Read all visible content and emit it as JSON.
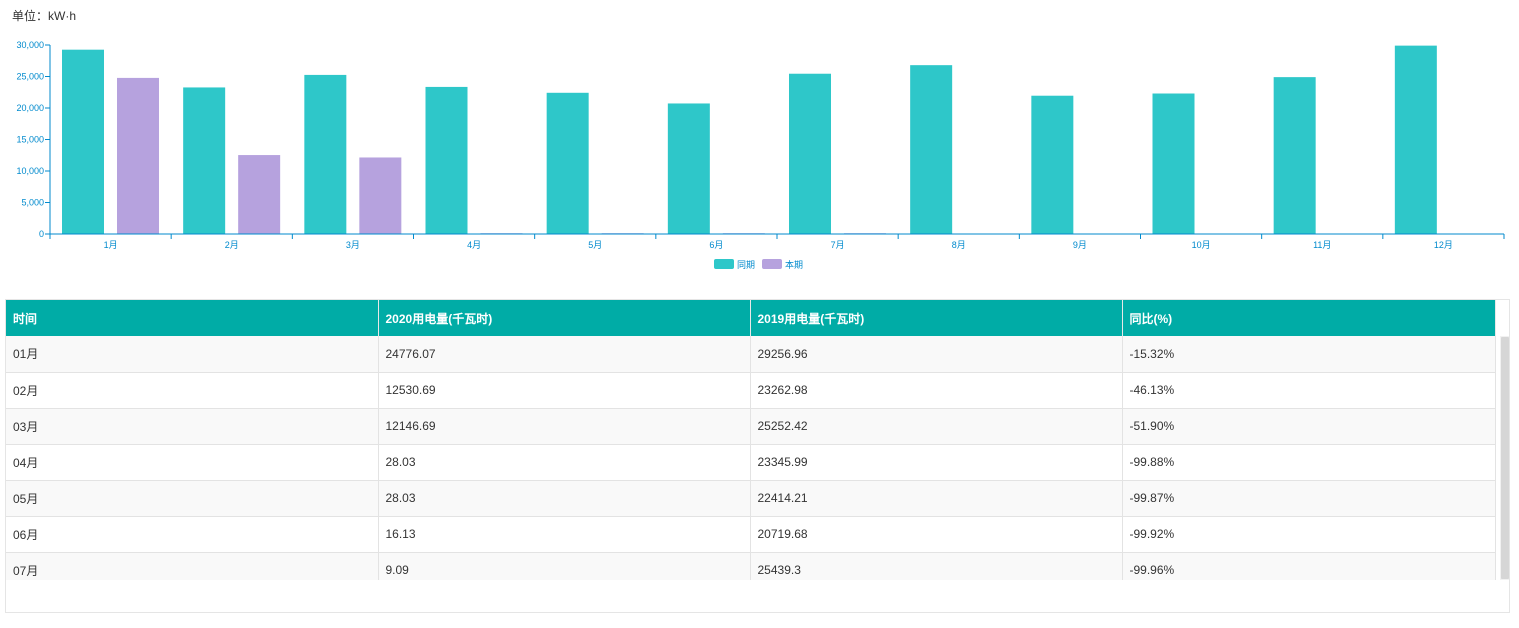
{
  "unit": "单位：kW·h",
  "chart_data": {
    "type": "bar",
    "categories": [
      "1月",
      "2月",
      "3月",
      "4月",
      "5月",
      "6月",
      "7月",
      "8月",
      "9月",
      "10月",
      "11月",
      "12月"
    ],
    "series": [
      {
        "name": "同期",
        "color": "#2ec7c9",
        "values": [
          29256.96,
          23262.98,
          25252.42,
          23345.99,
          22414.21,
          20719.68,
          25439.3,
          26800,
          21950,
          22300,
          24900,
          29900
        ]
      },
      {
        "name": "本期",
        "color": "#b6a2de",
        "values": [
          24776.07,
          12530.69,
          12146.69,
          28.03,
          28.03,
          16.13,
          9.09,
          0,
          0,
          0,
          0,
          0
        ]
      }
    ],
    "ylim": [
      0,
      30000
    ],
    "yticks": [
      0,
      5000,
      10000,
      15000,
      20000,
      25000,
      30000
    ],
    "ytick_labels": [
      "0",
      "5,000",
      "10,000",
      "15,000",
      "20,000",
      "25,000",
      "30,000"
    ],
    "legend": "bottom-center",
    "axis_color": "#008acd"
  },
  "table": {
    "headers": [
      "时间",
      "2020用电量(千瓦时)",
      "2019用电量(千瓦时)",
      "同比(%)"
    ],
    "rows": [
      [
        "01月",
        "24776.07",
        "29256.96",
        "-15.32%"
      ],
      [
        "02月",
        "12530.69",
        "23262.98",
        "-46.13%"
      ],
      [
        "03月",
        "12146.69",
        "25252.42",
        "-51.90%"
      ],
      [
        "04月",
        "28.03",
        "23345.99",
        "-99.88%"
      ],
      [
        "05月",
        "28.03",
        "22414.21",
        "-99.87%"
      ],
      [
        "06月",
        "16.13",
        "20719.68",
        "-99.92%"
      ],
      [
        "07月",
        "9.09",
        "25439.3",
        "-99.96%"
      ]
    ]
  }
}
